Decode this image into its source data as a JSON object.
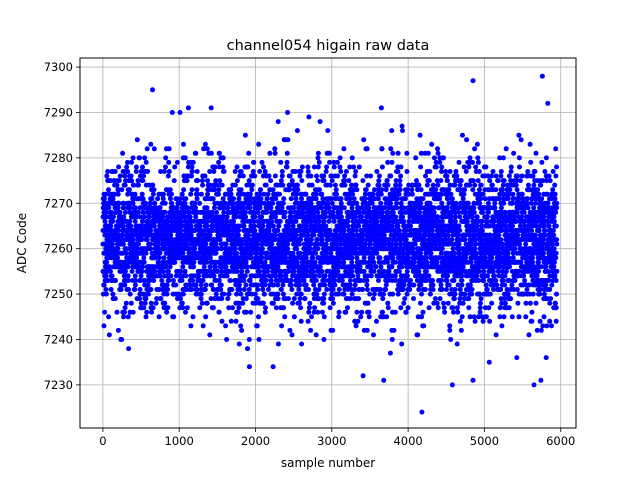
{
  "chart_data": {
    "type": "scatter",
    "title": "channel054 higain raw data",
    "xlabel": "sample number",
    "ylabel": "ADC Code",
    "xlim": [
      -300,
      6200
    ],
    "ylim": [
      7220.5,
      7302
    ],
    "x_ticks": [
      0,
      1000,
      2000,
      3000,
      4000,
      5000,
      6000
    ],
    "y_ticks": [
      7230,
      7240,
      7250,
      7260,
      7270,
      7280,
      7290,
      7300
    ],
    "grid": true,
    "marker_color": "#0000ff",
    "series": [
      {
        "n_points": 6000,
        "x_range": [
          0,
          5950
        ],
        "y_mean": 7262,
        "y_std": 8,
        "y_min_clip": 7233,
        "y_max_clip": 7288,
        "outliers": [
          {
            "x": 650,
            "y": 7295
          },
          {
            "x": 910,
            "y": 7290
          },
          {
            "x": 1010,
            "y": 7290
          },
          {
            "x": 1120,
            "y": 7291
          },
          {
            "x": 1420,
            "y": 7291
          },
          {
            "x": 1920,
            "y": 7234
          },
          {
            "x": 2230,
            "y": 7234
          },
          {
            "x": 2420,
            "y": 7290
          },
          {
            "x": 2700,
            "y": 7289
          },
          {
            "x": 3410,
            "y": 7232
          },
          {
            "x": 3650,
            "y": 7291
          },
          {
            "x": 3680,
            "y": 7231
          },
          {
            "x": 4180,
            "y": 7224
          },
          {
            "x": 4580,
            "y": 7230
          },
          {
            "x": 4850,
            "y": 7297
          },
          {
            "x": 4850,
            "y": 7231
          },
          {
            "x": 5650,
            "y": 7230
          },
          {
            "x": 5740,
            "y": 7231
          },
          {
            "x": 5760,
            "y": 7298
          },
          {
            "x": 5830,
            "y": 7292
          },
          {
            "x": 5810,
            "y": 7236
          }
        ]
      }
    ]
  }
}
